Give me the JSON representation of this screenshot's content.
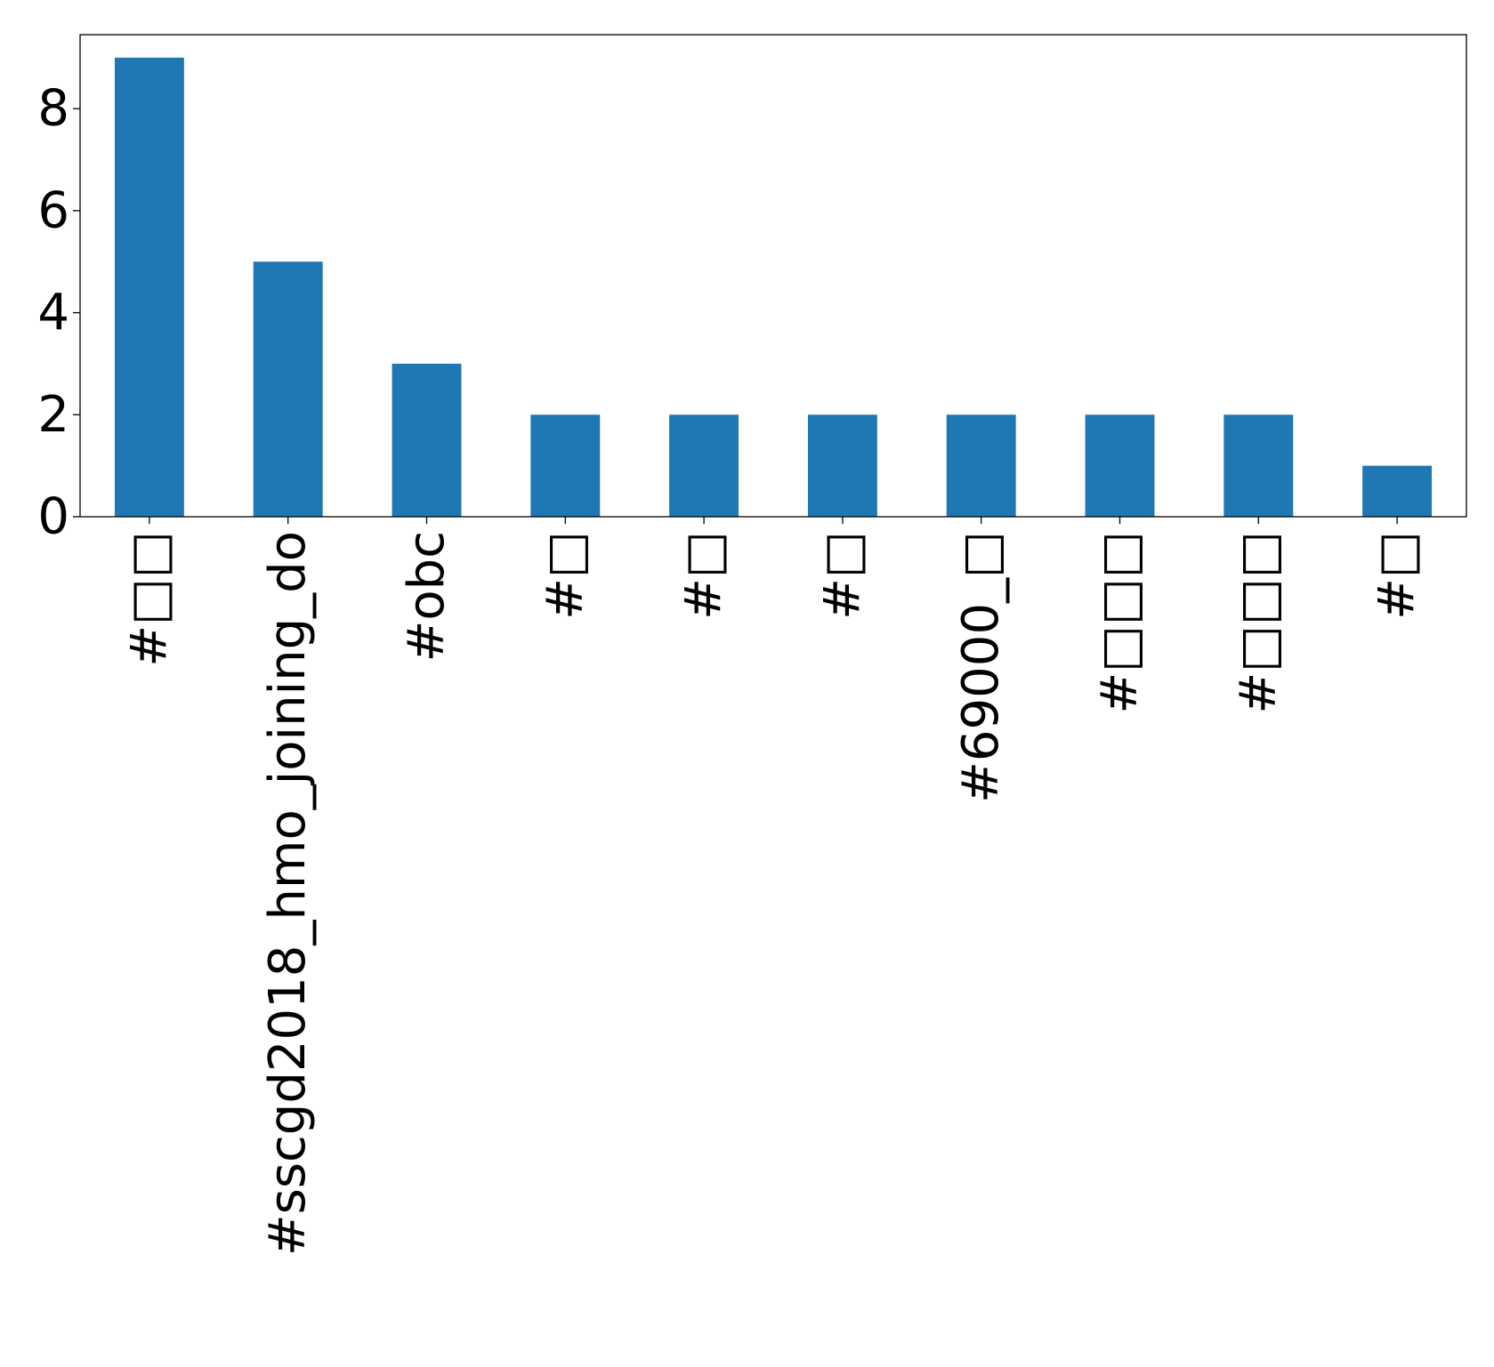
{
  "chart_data": {
    "type": "bar",
    "categories": [
      "#□□",
      "#sscgd2018_hmo_joining_do",
      "#obc",
      "#□",
      "#□",
      "#□",
      "#69000_□",
      "#□□□",
      "#□□□",
      "#□"
    ],
    "values": [
      9,
      5,
      3,
      2,
      2,
      2,
      2,
      2,
      2,
      1
    ],
    "yticks": [
      0,
      2,
      4,
      6,
      8
    ],
    "ylim": [
      0,
      9.45
    ],
    "bar_color": "#1f77b4",
    "title": "",
    "xlabel": "",
    "ylabel": "",
    "grid": false,
    "legend": false
  }
}
